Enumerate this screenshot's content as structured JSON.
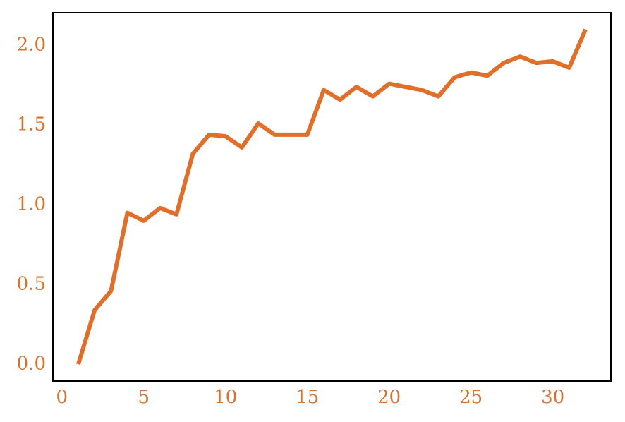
{
  "chart_data": {
    "type": "line",
    "x": [
      1,
      2,
      3,
      4,
      5,
      6,
      7,
      8,
      9,
      10,
      11,
      12,
      13,
      14,
      15,
      16,
      17,
      18,
      19,
      20,
      21,
      22,
      23,
      24,
      25,
      26,
      27,
      28,
      29,
      30,
      31,
      32
    ],
    "series": [
      {
        "color": "#df6f2a",
        "values": [
          0.0,
          0.34,
          0.46,
          0.95,
          0.9,
          0.98,
          0.94,
          1.32,
          1.44,
          1.43,
          1.36,
          1.51,
          1.44,
          1.44,
          1.44,
          1.72,
          1.66,
          1.74,
          1.68,
          1.76,
          1.74,
          1.72,
          1.68,
          1.8,
          1.83,
          1.81,
          1.89,
          1.93,
          1.89,
          1.9,
          1.86,
          2.1
        ]
      }
    ],
    "xlim": [
      -0.55,
      33.55
    ],
    "xticks": [
      0,
      5,
      10,
      15,
      20,
      25,
      30
    ],
    "ylim": [
      -0.105,
      2.205
    ],
    "yticks": [
      {
        "value": 0,
        "label": "0.0"
      },
      0.5,
      {
        "value": 1,
        "label": "1.0"
      },
      1.5,
      {
        "value": 2,
        "label": "2.0"
      }
    ],
    "tick_color": "#d8722f",
    "grid": false
  }
}
